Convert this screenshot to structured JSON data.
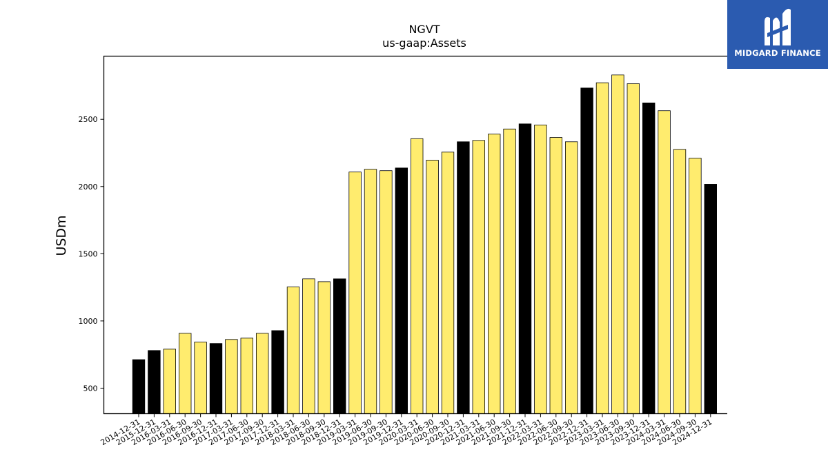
{
  "brand": {
    "name": "MIDGARD FINANCE",
    "icon": "midgard-m-logo-icon",
    "background": "#2b5bb0"
  },
  "chart_data": {
    "type": "bar",
    "title": "NGVT",
    "subtitle": "us-gaap:Assets",
    "xlabel": "",
    "ylabel": "USDm",
    "ylim": [
      310,
      2970
    ],
    "yticks": [
      500,
      1000,
      1500,
      2000,
      2500
    ],
    "grid": false,
    "colors": {
      "annual": "#000000",
      "quarterly": "#ffec6e",
      "edge": "#000000"
    },
    "categories": [
      "2014-12-31",
      "2015-12-31",
      "2016-03-31",
      "2016-06-30",
      "2016-09-30",
      "2016-12-31",
      "2017-03-31",
      "2017-06-30",
      "2017-09-30",
      "2017-12-31",
      "2018-03-31",
      "2018-06-30",
      "2018-09-30",
      "2018-12-31",
      "2019-03-31",
      "2019-06-30",
      "2019-09-30",
      "2019-12-31",
      "2020-03-31",
      "2020-06-30",
      "2020-09-30",
      "2020-12-31",
      "2021-03-31",
      "2021-06-30",
      "2021-09-30",
      "2021-12-31",
      "2022-03-31",
      "2022-06-30",
      "2022-09-30",
      "2022-12-31",
      "2023-03-31",
      "2023-06-30",
      "2023-09-30",
      "2023-12-31",
      "2024-03-31",
      "2024-06-30",
      "2024-09-30",
      "2024-12-31"
    ],
    "values": [
      712,
      780,
      790,
      908,
      843,
      832,
      862,
      872,
      908,
      928,
      1253,
      1313,
      1292,
      1313,
      2108,
      2128,
      2118,
      2138,
      2356,
      2196,
      2256,
      2333,
      2343,
      2390,
      2428,
      2466,
      2458,
      2365,
      2333,
      2733,
      2772,
      2830,
      2765,
      2622,
      2564,
      2276,
      2211,
      2017
    ],
    "bar_type": [
      "annual",
      "annual",
      "quarterly",
      "quarterly",
      "quarterly",
      "annual",
      "quarterly",
      "quarterly",
      "quarterly",
      "annual",
      "quarterly",
      "quarterly",
      "quarterly",
      "annual",
      "quarterly",
      "quarterly",
      "quarterly",
      "annual",
      "quarterly",
      "quarterly",
      "quarterly",
      "annual",
      "quarterly",
      "quarterly",
      "quarterly",
      "annual",
      "quarterly",
      "quarterly",
      "quarterly",
      "annual",
      "quarterly",
      "quarterly",
      "quarterly",
      "annual",
      "quarterly",
      "quarterly",
      "quarterly",
      "annual"
    ]
  }
}
